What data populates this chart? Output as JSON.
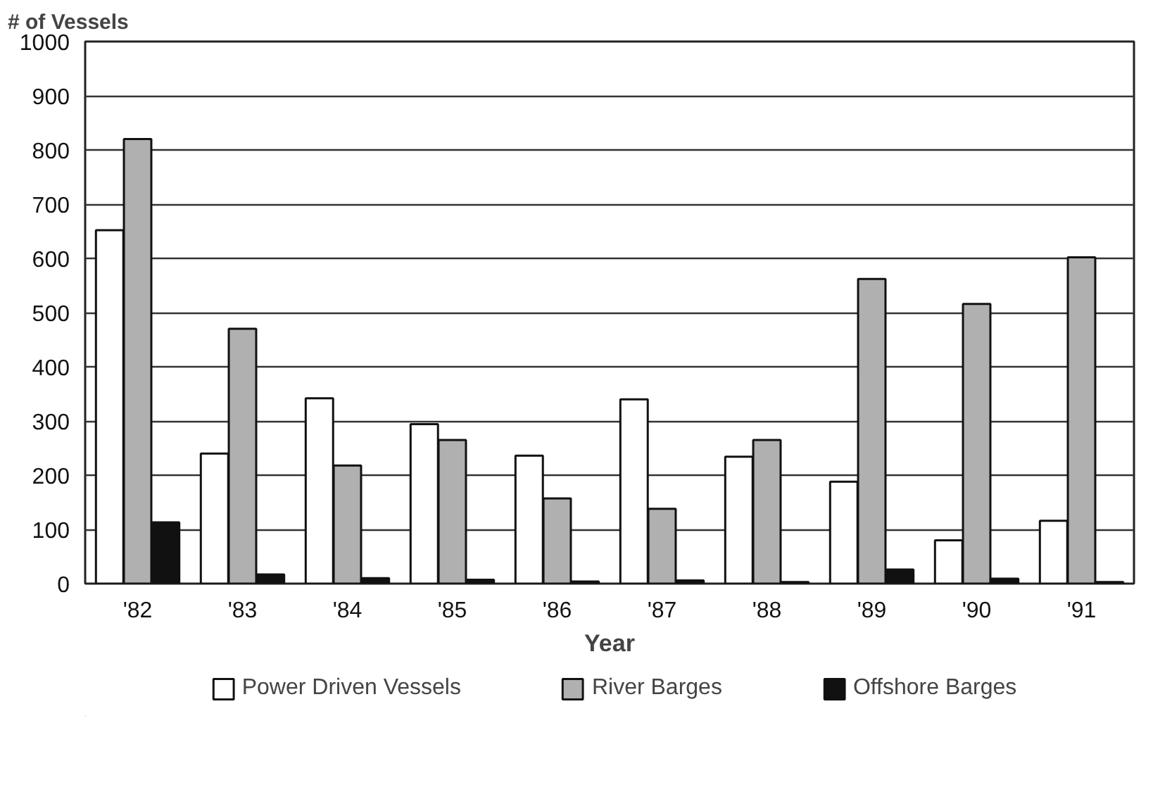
{
  "chart_data": {
    "type": "bar",
    "ylabel": "# of Vessels",
    "xlabel": "Year",
    "categories": [
      "'82",
      "'83",
      "'84",
      "'85",
      "'86",
      "'87",
      "'88",
      "'89",
      "'90",
      "'91"
    ],
    "series": [
      {
        "name": "Power Driven Vessels",
        "color": "#ffffff",
        "values": [
          652,
          240,
          342,
          294,
          236,
          340,
          234,
          188,
          80,
          116
        ]
      },
      {
        "name": "River Barges",
        "color": "#b0b0b0",
        "values": [
          820,
          470,
          218,
          265,
          157,
          138,
          265,
          562,
          516,
          602
        ]
      },
      {
        "name": "Offshore Barges",
        "color": "#111111",
        "values": [
          113,
          17,
          10,
          7,
          4,
          6,
          3,
          26,
          9,
          3
        ]
      }
    ],
    "ylim": [
      0,
      1000
    ],
    "yticks": [
      0,
      100,
      200,
      300,
      400,
      500,
      600,
      700,
      800,
      900,
      1000
    ],
    "grid": "y",
    "legend": "bottom"
  }
}
